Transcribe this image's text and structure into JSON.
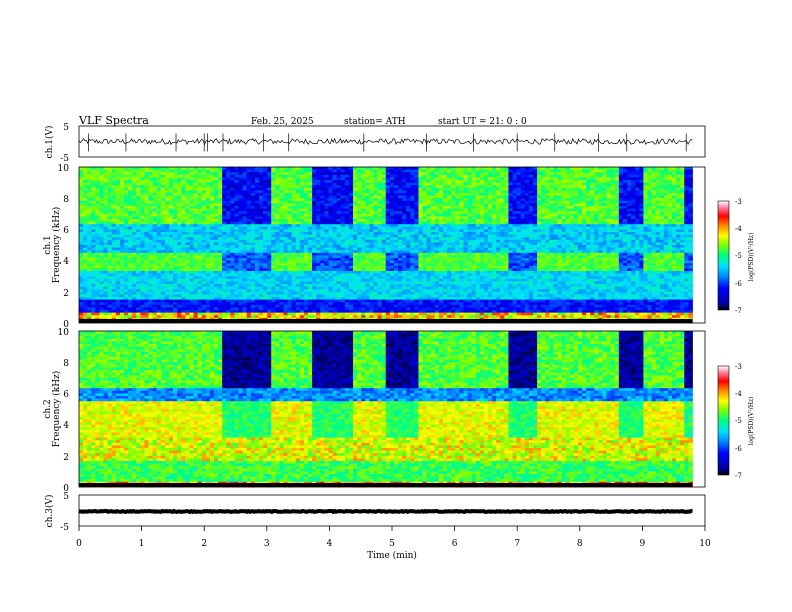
{
  "header": {
    "title": "VLF  Spectra",
    "date": "Feb. 25, 2025",
    "station": "station= ATH",
    "start": "start  UT  =    21: 0   : 0"
  },
  "chart_data": [
    {
      "type": "line",
      "name": "ch1-waveform",
      "ylabel": "ch.1(V)",
      "xlim": [
        0,
        10
      ],
      "ylim": [
        -5,
        5
      ],
      "yticks": [
        "5",
        "-5"
      ],
      "baseline": 0,
      "spikes_min": [
        0.15,
        0.75,
        1.55,
        2.0,
        2.05,
        2.3,
        2.95,
        3.35,
        4.55,
        5.55,
        6.3,
        7.0,
        7.6,
        8.3,
        8.75,
        9.7
      ]
    },
    {
      "type": "heatmap",
      "name": "ch1-spectrogram",
      "ylabel_lines": [
        "ch.1",
        "Frequency  (kHz)"
      ],
      "xlim": [
        0,
        10
      ],
      "ylim": [
        0,
        10
      ],
      "yticks": [
        "0",
        "2",
        "4",
        "6",
        "8",
        "10"
      ],
      "transmitter_off_intervals_min": [
        [
          2.3,
          3.05
        ],
        [
          3.75,
          4.35
        ],
        [
          4.9,
          5.45
        ],
        [
          6.85,
          7.3
        ],
        [
          8.6,
          9.0
        ],
        [
          9.65,
          9.8
        ]
      ],
      "colorbar": {
        "label": "log(PSD)(V²/Hz)",
        "range": [
          -7,
          -3
        ],
        "ticks": [
          "-3",
          "-4",
          "-5",
          "-6",
          "-7"
        ]
      }
    },
    {
      "type": "heatmap",
      "name": "ch2-spectrogram",
      "ylabel_lines": [
        "ch.2",
        "Frequency  (kHz)"
      ],
      "xlim": [
        0,
        10
      ],
      "ylim": [
        0,
        10
      ],
      "yticks": [
        "0",
        "2",
        "4",
        "6",
        "8",
        "10"
      ],
      "transmitter_off_intervals_min": [
        [
          2.3,
          3.05
        ],
        [
          3.75,
          4.35
        ],
        [
          4.9,
          5.45
        ],
        [
          6.85,
          7.3
        ],
        [
          8.6,
          9.0
        ],
        [
          9.65,
          9.8
        ]
      ],
      "colorbar": {
        "label": "log(PSD)(V²/Hz)",
        "range": [
          -7,
          -3
        ],
        "ticks": [
          "-3",
          "-4",
          "-5",
          "-6",
          "-7"
        ]
      }
    },
    {
      "type": "line",
      "name": "ch3-waveform",
      "ylabel": "ch.3(V)",
      "xlim": [
        0,
        10
      ],
      "ylim": [
        -5,
        5
      ],
      "yticks": [
        "5",
        "-5"
      ],
      "baseline": -0.3,
      "spikes_min": []
    }
  ],
  "xaxis": {
    "label": "Time  (min)",
    "ticks": [
      "0",
      "1",
      "2",
      "3",
      "4",
      "5",
      "6",
      "7",
      "8",
      "9",
      "10"
    ]
  },
  "colors": {
    "background": "#ffffff",
    "colormap": [
      "#000000",
      "#0000a0",
      "#0000ff",
      "#0080ff",
      "#00e0ff",
      "#00ff80",
      "#80ff00",
      "#ffff00",
      "#ff8000",
      "#ff0000",
      "#ff80a0",
      "#ffffff"
    ]
  }
}
